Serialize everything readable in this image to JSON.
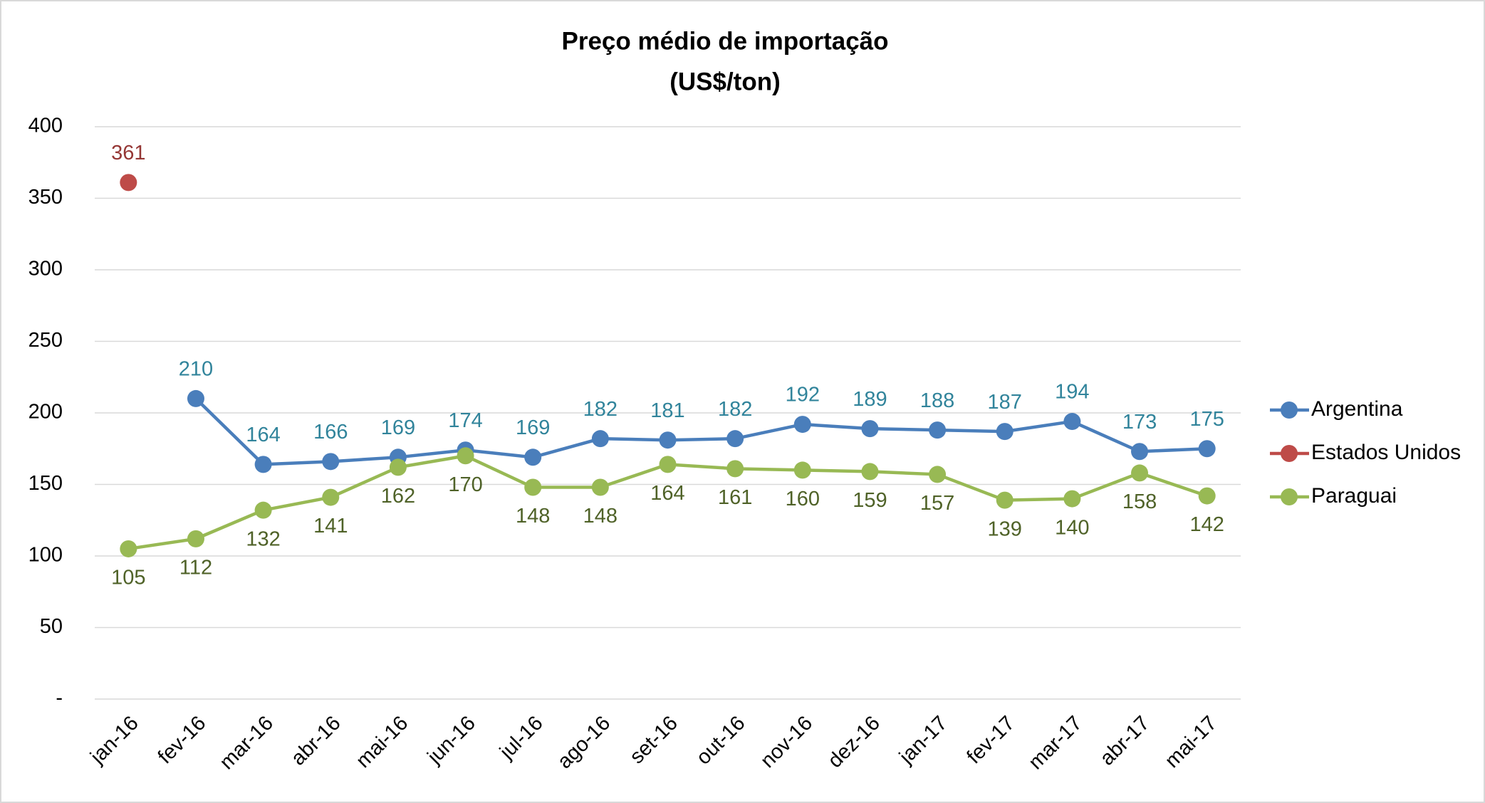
{
  "chart_data": {
    "type": "line",
    "title": "Preço médio de importação",
    "subtitle": "(US$/ton)",
    "categories": [
      "jan-16",
      "fev-16",
      "mar-16",
      "abr-16",
      "mai-16",
      "jun-16",
      "jul-16",
      "ago-16",
      "set-16",
      "out-16",
      "nov-16",
      "dez-16",
      "jan-17",
      "fev-17",
      "mar-17",
      "abr-17",
      "mai-17"
    ],
    "series": [
      {
        "name": "Argentina",
        "color": "#4a7ebb",
        "label_color": "#31849b",
        "label_position": "above",
        "values": [
          null,
          210,
          164,
          166,
          169,
          174,
          169,
          182,
          181,
          182,
          192,
          189,
          188,
          187,
          194,
          173,
          175
        ]
      },
      {
        "name": "Estados Unidos",
        "color": "#be4b48",
        "label_color": "#953735",
        "label_position": "above",
        "values": [
          361,
          null,
          null,
          null,
          null,
          null,
          null,
          null,
          null,
          null,
          null,
          null,
          null,
          null,
          null,
          null,
          null
        ]
      },
      {
        "name": "Paraguai",
        "color": "#98b954",
        "label_color": "#4f6228",
        "label_position": "below",
        "values": [
          105,
          112,
          132,
          141,
          162,
          170,
          148,
          148,
          164,
          161,
          160,
          159,
          157,
          139,
          140,
          158,
          142
        ]
      }
    ],
    "ylim": [
      0,
      400
    ],
    "yticks": [
      {
        "value": 0,
        "label": "-"
      },
      50,
      100,
      150,
      200,
      250,
      300,
      350,
      400
    ],
    "grid": true,
    "legend": "right"
  }
}
